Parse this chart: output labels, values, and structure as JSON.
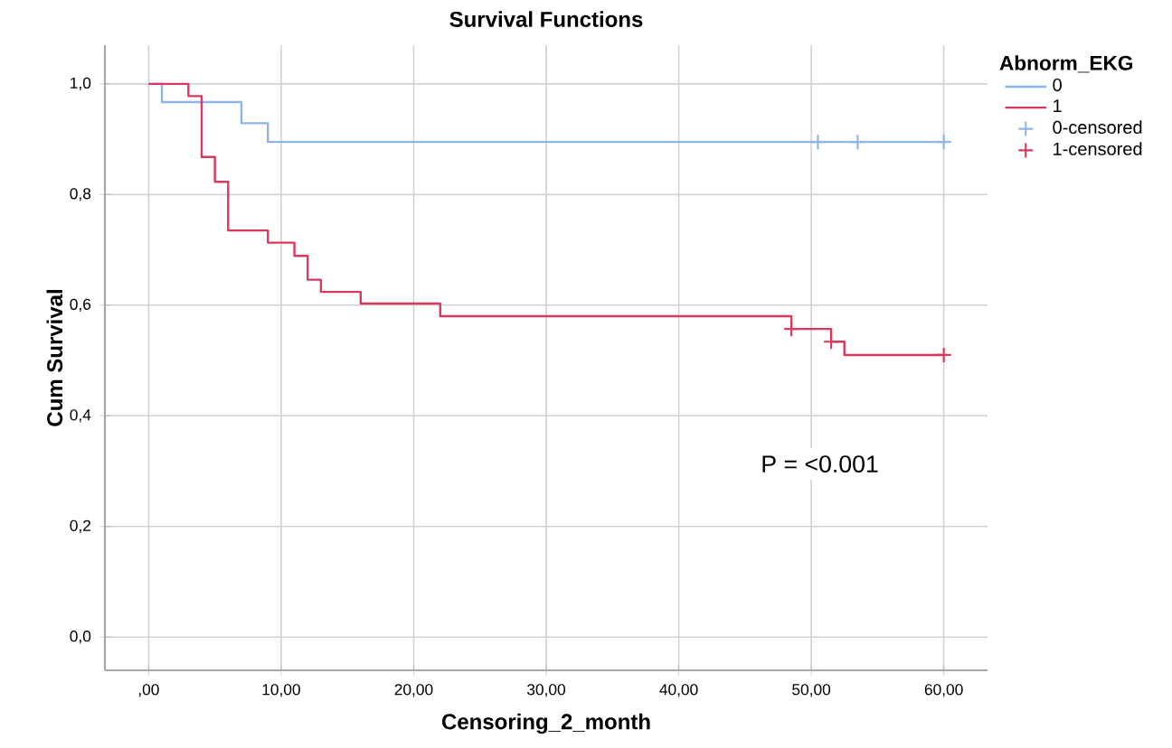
{
  "chart_data": {
    "type": "step",
    "title": "Survival Functions",
    "xlabel": "Censoring_2_month",
    "ylabel": "Cum Survival",
    "legend_title": "Abnorm_EKG",
    "annotations": [
      "P = <0.001"
    ],
    "xlim": [
      -3.3,
      63.3
    ],
    "ylim": [
      -0.06,
      1.07
    ],
    "xticks": [
      {
        "value": 0,
        "label": ",00"
      },
      {
        "value": 10,
        "label": "10,00"
      },
      {
        "value": 20,
        "label": "20,00"
      },
      {
        "value": 30,
        "label": "30,00"
      },
      {
        "value": 40,
        "label": "40,00"
      },
      {
        "value": 50,
        "label": "50,00"
      },
      {
        "value": 60,
        "label": "60,00"
      }
    ],
    "yticks": [
      {
        "value": 0,
        "label": "0,0"
      },
      {
        "value": 0.2,
        "label": "0,2"
      },
      {
        "value": 0.4,
        "label": "0,4"
      },
      {
        "value": 0.6,
        "label": "0,6"
      },
      {
        "value": 0.8,
        "label": "0,8"
      },
      {
        "value": 1,
        "label": "1,0"
      }
    ],
    "grid": true,
    "legend": "right",
    "line_style": "solid",
    "series": [
      {
        "name": "0",
        "color": "#8db6e6",
        "x": [
          0,
          1,
          7,
          9,
          60
        ],
        "values": [
          1.0,
          0.967,
          0.929,
          0.895,
          0.895
        ]
      },
      {
        "name": "1",
        "color": "#d83a5e",
        "x": [
          0,
          3,
          4,
          5,
          6,
          9,
          11,
          12,
          13,
          16,
          22,
          48.5,
          51.5,
          52.5,
          60
        ],
        "values": [
          1.0,
          0.978,
          0.868,
          0.823,
          0.735,
          0.713,
          0.689,
          0.646,
          0.624,
          0.603,
          0.58,
          0.557,
          0.534,
          0.51,
          0.51
        ]
      },
      {
        "name": "0-censored",
        "type": "scatter",
        "marker": "cross",
        "color": "#8db6e6",
        "x": [
          50.5,
          53.5,
          60
        ],
        "values": [
          0.895,
          0.895,
          0.895
        ]
      },
      {
        "name": "1-censored",
        "type": "scatter",
        "marker": "cross",
        "color": "#d83a5e",
        "x": [
          48.5,
          51.5,
          60
        ],
        "values": [
          0.557,
          0.534,
          0.51
        ]
      }
    ]
  }
}
